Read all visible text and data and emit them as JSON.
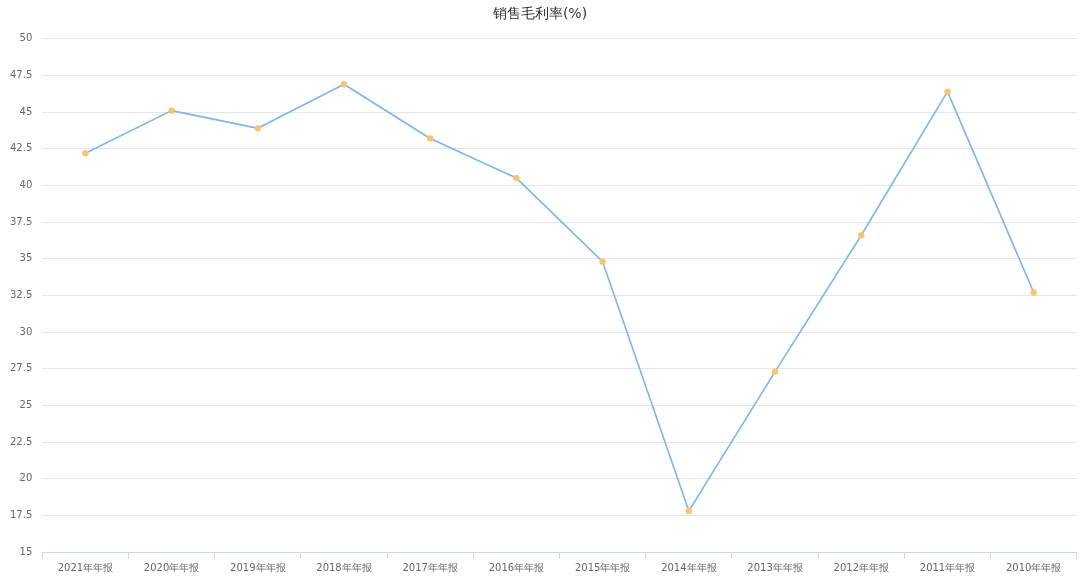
{
  "chart_data": {
    "type": "line",
    "title": "销售毛利率(%)",
    "categories": [
      "2021年年报",
      "2020年年报",
      "2019年年报",
      "2018年年报",
      "2017年年报",
      "2016年年报",
      "2015年年报",
      "2014年年报",
      "2013年年报",
      "2012年年报",
      "2011年年报",
      "2010年年报"
    ],
    "series": [
      {
        "color": "#7cb5ec",
        "colors": [
          "#f8c66e",
          "#f8c66e",
          "#f8c66e",
          "#f8c66e",
          "#f8c66e",
          "#f8c66e",
          "#f8c66e",
          "#f8c66e",
          "#f8c66e",
          "#f8c66e",
          "#f8c66e",
          "#f8c66e"
        ],
        "values": [
          42.2,
          45.1,
          43.9,
          46.9,
          43.2,
          40.5,
          34.8,
          17.8,
          27.3,
          36.6,
          46.4,
          32.7
        ]
      }
    ],
    "ylim": [
      15,
      50
    ],
    "yticks": [
      15,
      17.5,
      20,
      22.5,
      25,
      27.5,
      30,
      32.5,
      35,
      37.5,
      40,
      42.5,
      45,
      47.5,
      50
    ],
    "grid": "y",
    "marker": "circle",
    "line_style": "solid"
  }
}
